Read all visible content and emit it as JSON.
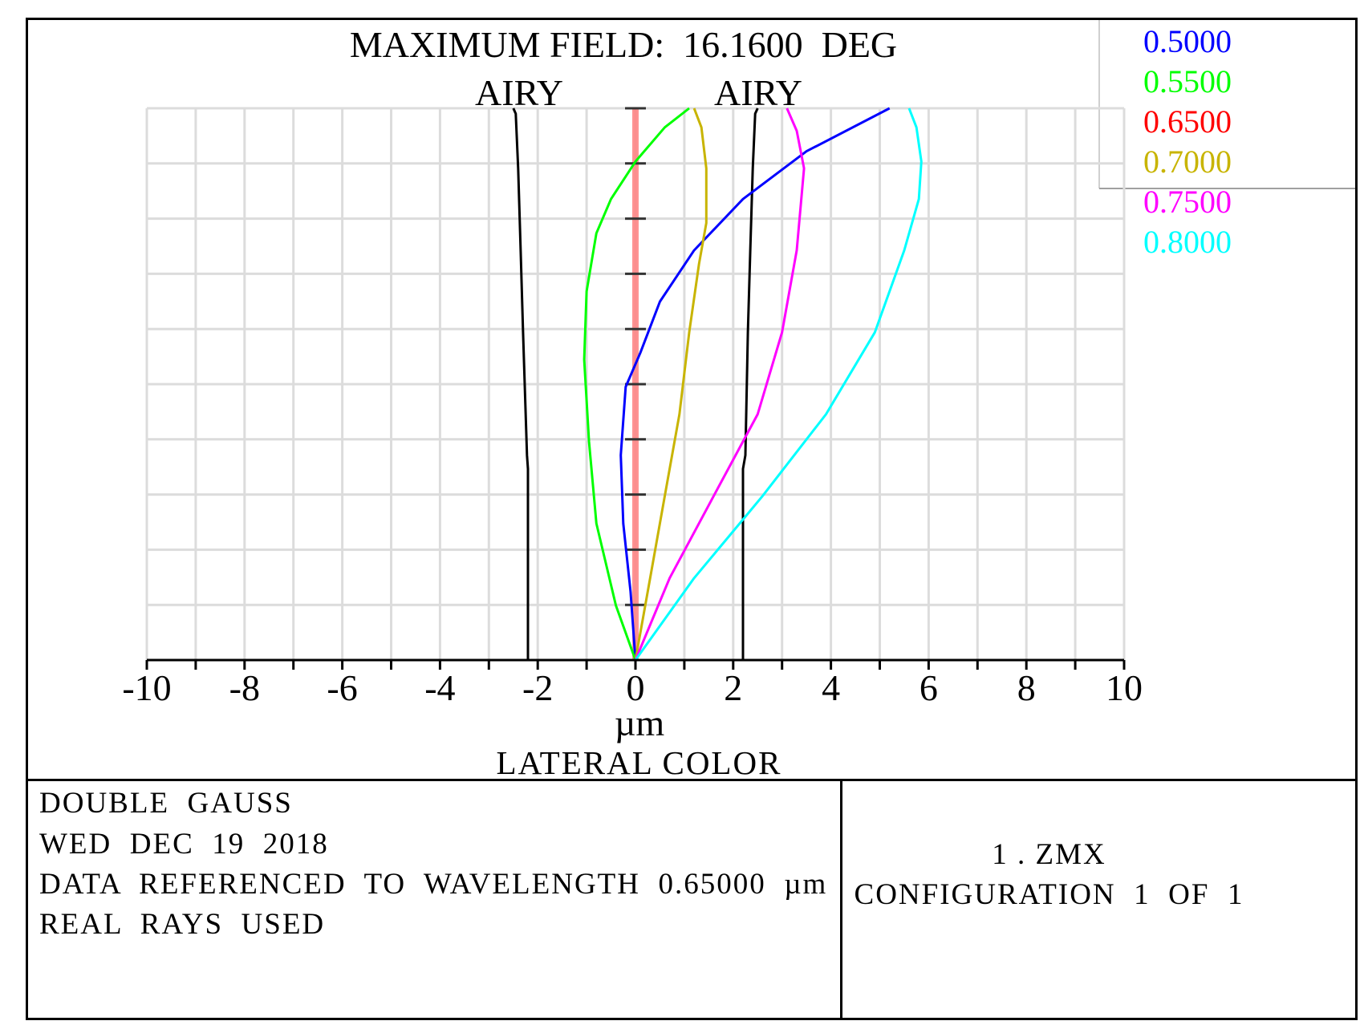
{
  "chart_data": {
    "type": "line",
    "title": "MAXIMUM FIELD:  16.1600  DEG",
    "xlabel": "µm",
    "ylabel": "",
    "caption": "LATERAL  COLOR",
    "xlim": [
      -10,
      10
    ],
    "ylim": [
      0,
      16.16
    ],
    "x_ticks": [
      -10,
      -8,
      -6,
      -4,
      -2,
      0,
      2,
      4,
      6,
      8,
      10
    ],
    "airy_label": "AIRY",
    "airy_left": {
      "name": "AIRY",
      "color": "#000000",
      "x": [
        -2.2,
        -2.2,
        -2.22,
        -2.3,
        -2.35,
        -2.4,
        -2.45,
        -2.5
      ],
      "y": [
        0,
        5.6,
        6.0,
        9.6,
        12.0,
        14.4,
        16.0,
        16.16
      ]
    },
    "airy_right": {
      "name": "AIRY",
      "color": "#000000",
      "x": [
        2.2,
        2.2,
        2.25,
        2.3,
        2.35,
        2.4,
        2.45,
        2.5
      ],
      "y": [
        0,
        5.6,
        6.0,
        9.6,
        12.0,
        14.4,
        16.0,
        16.16
      ]
    },
    "reference_line": {
      "color": "#ff8080",
      "x": 0,
      "y": [
        0,
        16.16
      ]
    },
    "series": [
      {
        "name": "0.5000",
        "color": "#0000ff",
        "x": [
          0,
          -0.1,
          -0.25,
          -0.3,
          -0.2,
          0.1,
          0.5,
          1.2,
          2.2,
          3.5,
          5.2
        ],
        "y": [
          0,
          2.0,
          4.0,
          6.0,
          8.0,
          9.0,
          10.5,
          12.0,
          13.5,
          14.9,
          16.16
        ]
      },
      {
        "name": "0.5500",
        "color": "#00ff00",
        "x": [
          0,
          -0.4,
          -0.8,
          -0.95,
          -1.05,
          -1.0,
          -0.8,
          -0.5,
          0,
          0.6,
          1.1
        ],
        "y": [
          0,
          1.6,
          4.0,
          6.4,
          8.8,
          10.8,
          12.5,
          13.5,
          14.6,
          15.6,
          16.16
        ]
      },
      {
        "name": "0.6500",
        "color": "#ff0000",
        "x": [
          0,
          0
        ],
        "y": [
          0,
          16.16
        ]
      },
      {
        "name": "0.7000",
        "color": "#c8b400",
        "x": [
          0,
          0.3,
          0.6,
          0.9,
          1.1,
          1.3,
          1.45,
          1.45,
          1.35,
          1.2
        ],
        "y": [
          0,
          2.4,
          4.8,
          7.2,
          9.6,
          11.6,
          12.8,
          14.4,
          15.6,
          16.16
        ]
      },
      {
        "name": "0.7500",
        "color": "#ff00ff",
        "x": [
          0,
          0.7,
          1.6,
          2.5,
          3.0,
          3.3,
          3.45,
          3.3,
          3.1
        ],
        "y": [
          0,
          2.4,
          4.8,
          7.2,
          9.6,
          12.0,
          14.4,
          15.5,
          16.16
        ]
      },
      {
        "name": "0.8000",
        "color": "#00ffff",
        "x": [
          0,
          1.2,
          2.6,
          3.9,
          4.9,
          5.5,
          5.8,
          5.85,
          5.75,
          5.6
        ],
        "y": [
          0,
          2.4,
          4.8,
          7.2,
          9.6,
          12.0,
          13.5,
          14.6,
          15.6,
          16.16
        ]
      }
    ]
  },
  "info": {
    "lines": [
      "DOUBLE  GAUSS",
      "WED  DEC  19  2018",
      "DATA  REFERENCED  TO  WAVELENGTH  0.65000  µm",
      "REAL  RAYS  USED"
    ],
    "file": "1 . ZMX",
    "config": "CONFIGURATION  1  OF  1"
  }
}
